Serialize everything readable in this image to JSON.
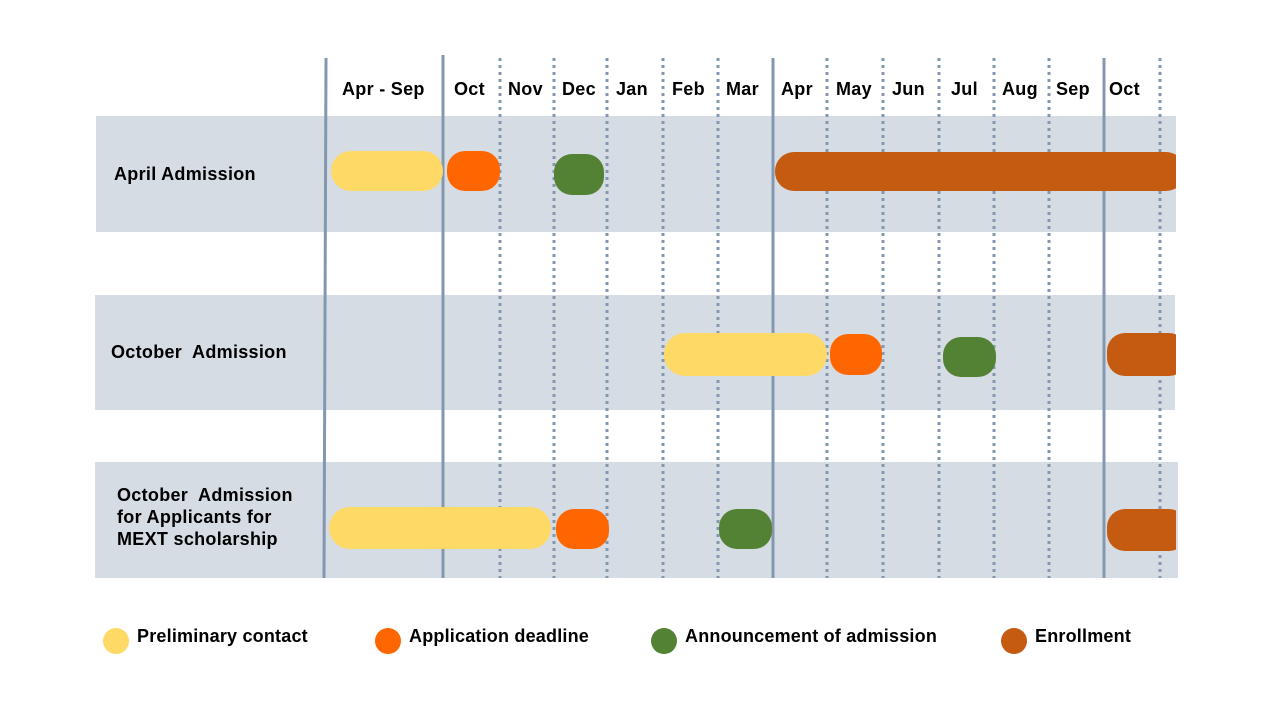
{
  "months": [
    "Apr - Sep",
    "Oct",
    "Nov",
    "Dec",
    "Jan",
    "Feb",
    "Mar",
    "Apr",
    "May",
    "Jun",
    "Jul",
    "Aug",
    "Sep",
    "Oct"
  ],
  "rows": [
    {
      "label": "April Admission"
    },
    {
      "label": "October  Admission"
    },
    {
      "label": "October  Admission\nfor Applicants for\nMEXT scholarship"
    }
  ],
  "legend": [
    {
      "label": "Preliminary contact",
      "color": "#ffd966",
      "icon": "yellow-dot-icon"
    },
    {
      "label": "Application deadline",
      "color": "#ff6600",
      "icon": "orange-dot-icon"
    },
    {
      "label": "Announcement of admission",
      "color": "#548235",
      "icon": "green-dot-icon"
    },
    {
      "label": "Enrollment",
      "color": "#c55a11",
      "icon": "brown-dot-icon"
    }
  ],
  "colors": {
    "band": "#d6dce4",
    "grid": "#8497b0"
  },
  "events": [
    {
      "row": "April Admission",
      "type": "Preliminary contact",
      "start": "Apr - Sep",
      "end": "Apr - Sep"
    },
    {
      "row": "April Admission",
      "type": "Application deadline",
      "start": "Oct",
      "end": "Oct"
    },
    {
      "row": "April Admission",
      "type": "Announcement of admission",
      "start": "Dec",
      "end": "Dec"
    },
    {
      "row": "April Admission",
      "type": "Enrollment",
      "start": "Apr",
      "end": "Oct"
    },
    {
      "row": "October  Admission",
      "type": "Preliminary contact",
      "start": "Feb",
      "end": "Apr"
    },
    {
      "row": "October  Admission",
      "type": "Application deadline",
      "start": "May",
      "end": "May"
    },
    {
      "row": "October  Admission",
      "type": "Announcement of admission",
      "start": "Jul",
      "end": "Jul"
    },
    {
      "row": "October  Admission",
      "type": "Enrollment",
      "start": "Oct",
      "end": "Oct"
    },
    {
      "row": "MEXT scholarship",
      "type": "Preliminary contact",
      "start": "Apr - Sep",
      "end": "Nov"
    },
    {
      "row": "MEXT scholarship",
      "type": "Application deadline",
      "start": "Dec",
      "end": "Dec"
    },
    {
      "row": "MEXT scholarship",
      "type": "Announcement of admission",
      "start": "Mar",
      "end": "Mar"
    },
    {
      "row": "MEXT scholarship",
      "type": "Enrollment",
      "start": "Oct",
      "end": "Oct"
    }
  ]
}
